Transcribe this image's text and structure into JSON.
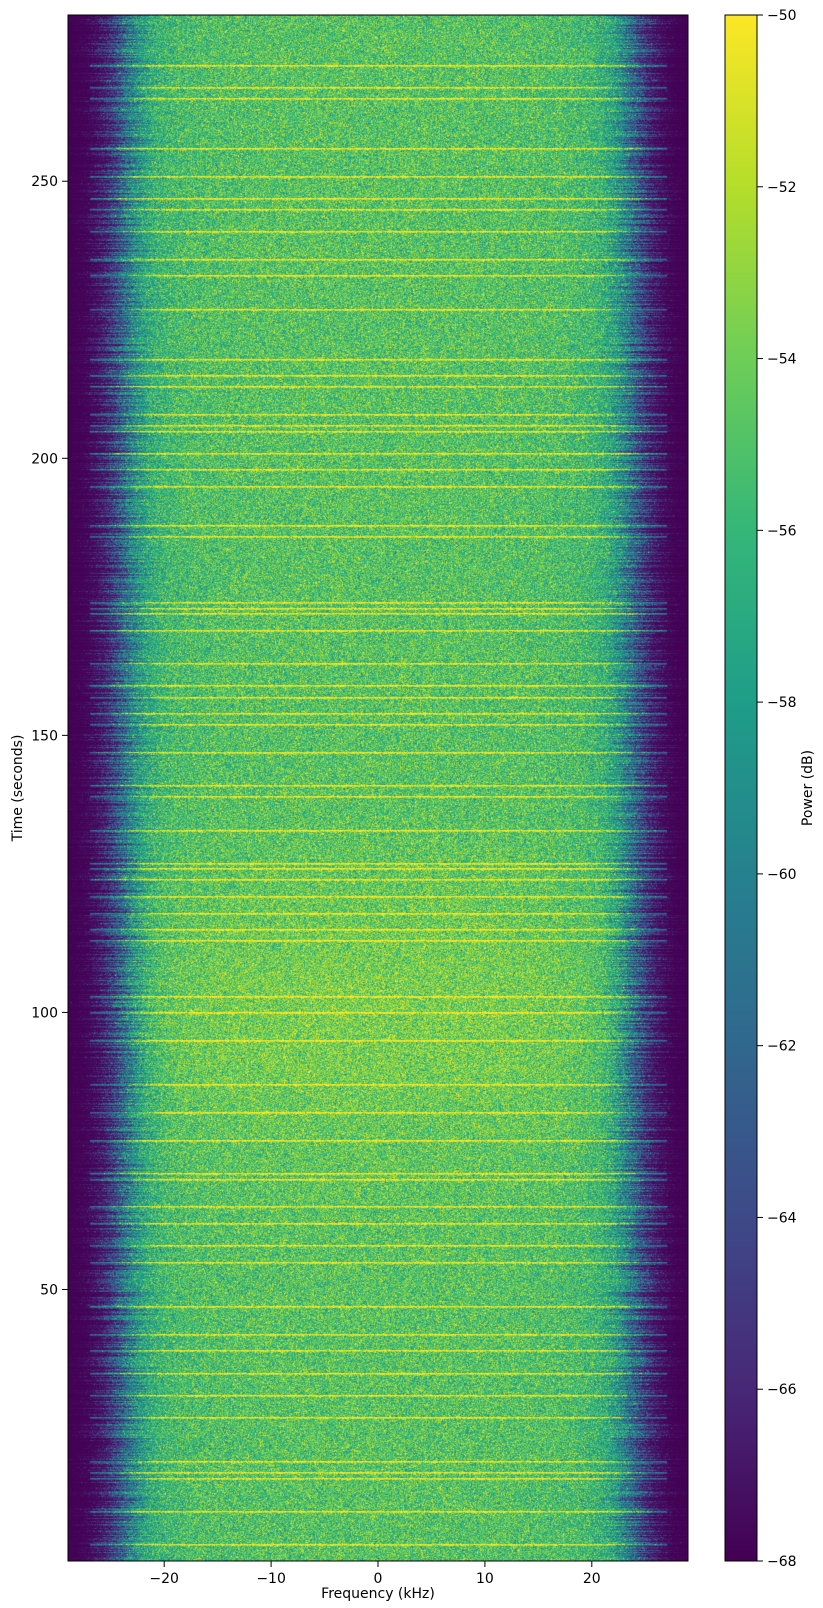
{
  "chart_data": {
    "type": "heatmap",
    "title": "",
    "xlabel": "Frequency (kHz)",
    "ylabel": "Time (seconds)",
    "xlim": [
      -29,
      29
    ],
    "ylim": [
      1,
      280
    ],
    "x_ticks": [
      -20,
      -10,
      0,
      10,
      20
    ],
    "x_tick_labels": [
      "−20",
      "−10",
      "0",
      "10",
      "20"
    ],
    "y_ticks": [
      50,
      100,
      150,
      200,
      250
    ],
    "y_tick_labels": [
      "50",
      "100",
      "150",
      "200",
      "250"
    ],
    "colorbar": {
      "label": "Power (dB)",
      "range": [
        -68,
        -50
      ],
      "ticks": [
        -68,
        -66,
        -64,
        -62,
        -60,
        -58,
        -56,
        -54,
        -52,
        -50
      ],
      "tick_labels": [
        "−68",
        "−66",
        "−64",
        "−62",
        "−60",
        "−58",
        "−56",
        "−54",
        "−52",
        "−50"
      ],
      "colormap": "viridis"
    },
    "signal_band_khz": [
      -24,
      24
    ],
    "noise_floor_db": -68,
    "band_level_db": -55,
    "burst_times_s": [
      4,
      10,
      16,
      17,
      19,
      27,
      31,
      35,
      39,
      42,
      47,
      55,
      58,
      62,
      65,
      70,
      71,
      77,
      82,
      87,
      95,
      100,
      103,
      113,
      115,
      118,
      121,
      124,
      126,
      127,
      133,
      139,
      141,
      147,
      152,
      154,
      157,
      159,
      163,
      169,
      172,
      173,
      174,
      186,
      188,
      195,
      198,
      201,
      205,
      206,
      208,
      213,
      215,
      218,
      227,
      233,
      236,
      241,
      245,
      247,
      251,
      256,
      265,
      267,
      271
    ]
  }
}
